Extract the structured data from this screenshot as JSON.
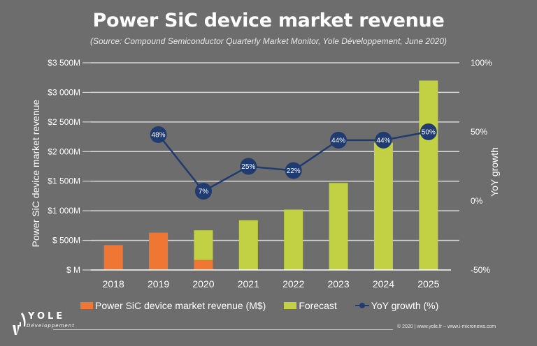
{
  "header": {
    "title": "Power SiC device market revenue",
    "subtitle": "(Source: Compound Semiconductor Quarterly Market Monitor, Yole Développement, June 2020)"
  },
  "colors": {
    "background": "#6d6d6d",
    "actual": "#ef7733",
    "forecast": "#c2d144",
    "yoy": "#1f3b70",
    "grid": "#d9d9d9"
  },
  "chart_data": {
    "type": "bar",
    "title": "Power SiC device market revenue",
    "subtitle": "(Source: Compound Semiconductor Quarterly Market Monitor, Yole Développement, June 2020)",
    "categories": [
      "2018",
      "2019",
      "2020",
      "2021",
      "2022",
      "2023",
      "2024",
      "2025"
    ],
    "series": [
      {
        "name": "Power SiC device market revenue (M$)",
        "kind": "bar-stacked",
        "color": "#ef7733",
        "values": [
          420,
          630,
          170,
          0,
          0,
          0,
          0,
          0
        ]
      },
      {
        "name": "Forecast",
        "kind": "bar-stacked",
        "color": "#c2d144",
        "values": [
          0,
          0,
          500,
          840,
          1020,
          1470,
          2150,
          3200
        ]
      },
      {
        "name": "YoY growth (%)",
        "kind": "line",
        "axis": "right",
        "color": "#1f3b70",
        "x": [
          "2019",
          "2020",
          "2021",
          "2022",
          "2023",
          "2024",
          "2025"
        ],
        "values": [
          48,
          7,
          25,
          22,
          44,
          44,
          50
        ],
        "labels": [
          "48%",
          "7%",
          "25%",
          "22%",
          "44%",
          "44%",
          "50%"
        ]
      }
    ],
    "ylabel": "Power SiC device market revenue",
    "ylabel_right": "YoY growth",
    "xlabel": "",
    "ylim": [
      0,
      3500
    ],
    "ylim_right": [
      -50,
      100
    ],
    "yticks": [
      0,
      500,
      1000,
      1500,
      2000,
      2500,
      3000,
      3500
    ],
    "ytick_labels": [
      "$ M",
      "$ 500M",
      "$1 000M",
      "$1 500M",
      "$2 000M",
      "$2 500M",
      "$3 000M",
      "$3 500M"
    ],
    "yticks_right": [
      -50,
      0,
      50,
      100
    ],
    "ytick_labels_right": [
      "-50%",
      "0%",
      "50%",
      "100%"
    ],
    "grid": true,
    "legend_position": "bottom"
  },
  "legend": {
    "items": [
      {
        "label": "Power SiC device market revenue (M$)"
      },
      {
        "label": "Forecast"
      },
      {
        "label": "YoY growth (%)"
      }
    ]
  },
  "footer": {
    "logo_name": "YOLE",
    "logo_sub": "Développement",
    "copyright": "© 2020 | www.yole.fr – www.i-micronews.com"
  }
}
